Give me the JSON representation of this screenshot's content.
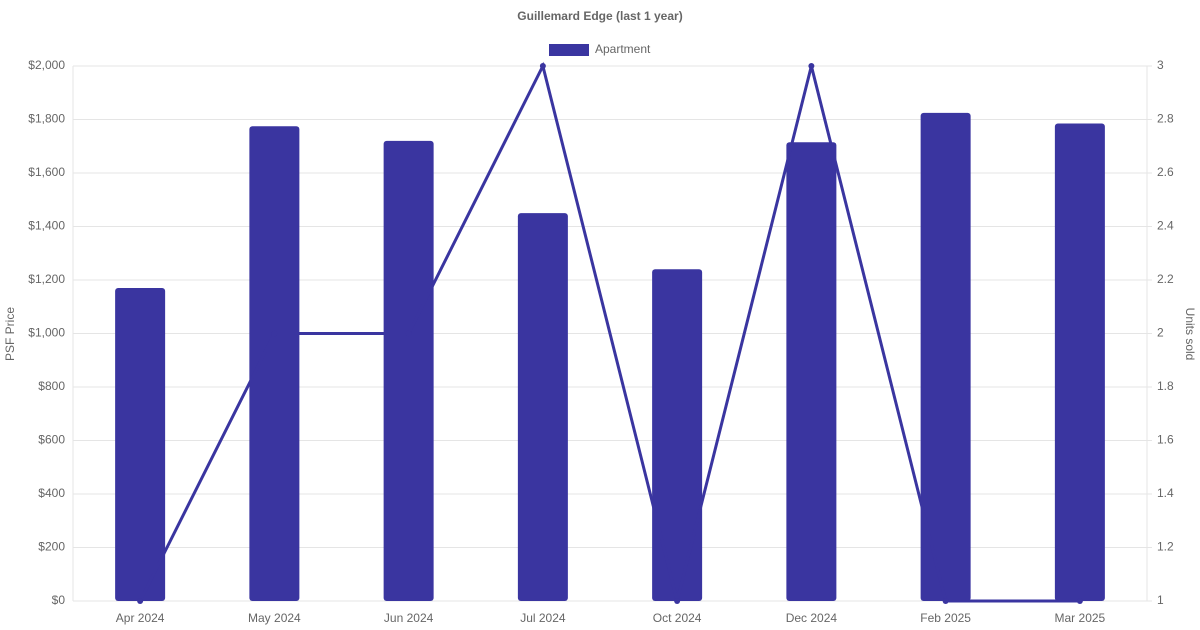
{
  "chart_data": {
    "type": "bar",
    "title": "Guillemard Edge (last 1 year)",
    "categories": [
      "Apr 2024",
      "May 2024",
      "Jun 2024",
      "Jul 2024",
      "Oct 2024",
      "Dec 2024",
      "Feb 2025",
      "Mar 2025"
    ],
    "series": [
      {
        "name": "Apartment",
        "type": "bar",
        "color": "#3a35a0",
        "values": [
          1170,
          1775,
          1720,
          1450,
          1240,
          1715,
          1825,
          1785
        ]
      },
      {
        "type": "line",
        "axis": "y2",
        "color": "#3a35a0",
        "values": [
          1,
          2,
          2,
          3,
          1,
          3,
          1,
          1
        ]
      }
    ],
    "ylabel": "PSF Price",
    "y2label": "Units sold",
    "ylim": [
      0,
      2000
    ],
    "yticks": [
      {
        "value": 0,
        "label": "$0"
      },
      {
        "value": 200,
        "label": "$200"
      },
      {
        "value": 400,
        "label": "$400"
      },
      {
        "value": 600,
        "label": "$600"
      },
      {
        "value": 800,
        "label": "$800"
      },
      {
        "value": 1000,
        "label": "$1,000"
      },
      {
        "value": 1200,
        "label": "$1,200"
      },
      {
        "value": 1400,
        "label": "$1,400"
      },
      {
        "value": 1600,
        "label": "$1,600"
      },
      {
        "value": 1800,
        "label": "$1,800"
      },
      {
        "value": 2000,
        "label": "$2,000"
      }
    ],
    "y2lim": [
      1,
      3
    ],
    "y2ticks": [
      1,
      1.2,
      1.4,
      1.6,
      1.8,
      2,
      2.2,
      2.4,
      2.6,
      2.8,
      3
    ],
    "grid": true,
    "legend": "top"
  }
}
